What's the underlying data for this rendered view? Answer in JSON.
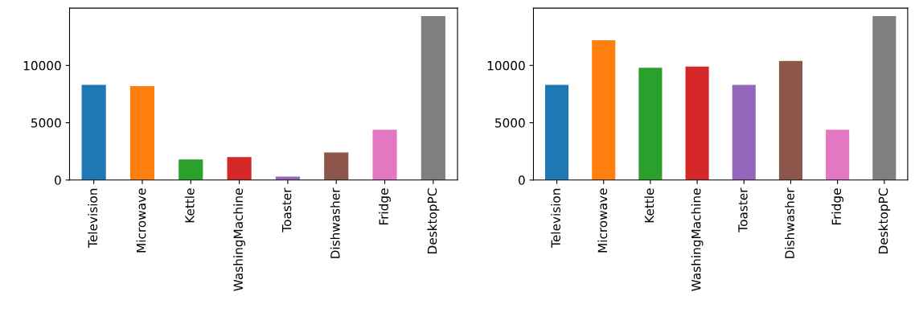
{
  "chart_data": [
    {
      "type": "bar",
      "categories": [
        "Television",
        "Microwave",
        "Kettle",
        "WashingMachine",
        "Toaster",
        "Dishwasher",
        "Fridge",
        "DesktopPC"
      ],
      "values": [
        8300,
        8200,
        1800,
        2000,
        300,
        2400,
        4400,
        14300
      ],
      "colors": [
        "#1f77b4",
        "#ff7f0e",
        "#2ca02c",
        "#d62728",
        "#9467bd",
        "#8c564b",
        "#e377c2",
        "#7f7f7f"
      ],
      "ylim": [
        0,
        15000
      ],
      "yticks": [
        0,
        5000,
        10000
      ],
      "grid": false,
      "legend": false
    },
    {
      "type": "bar",
      "categories": [
        "Television",
        "Microwave",
        "Kettle",
        "WashingMachine",
        "Toaster",
        "Dishwasher",
        "Fridge",
        "DesktopPC"
      ],
      "values": [
        8300,
        12200,
        9800,
        9900,
        8300,
        10400,
        4400,
        14300
      ],
      "colors": [
        "#1f77b4",
        "#ff7f0e",
        "#2ca02c",
        "#d62728",
        "#9467bd",
        "#8c564b",
        "#e377c2",
        "#7f7f7f"
      ],
      "ylim": [
        0,
        15000
      ],
      "yticks": [
        0,
        5000,
        10000
      ],
      "grid": false,
      "legend": false
    }
  ]
}
